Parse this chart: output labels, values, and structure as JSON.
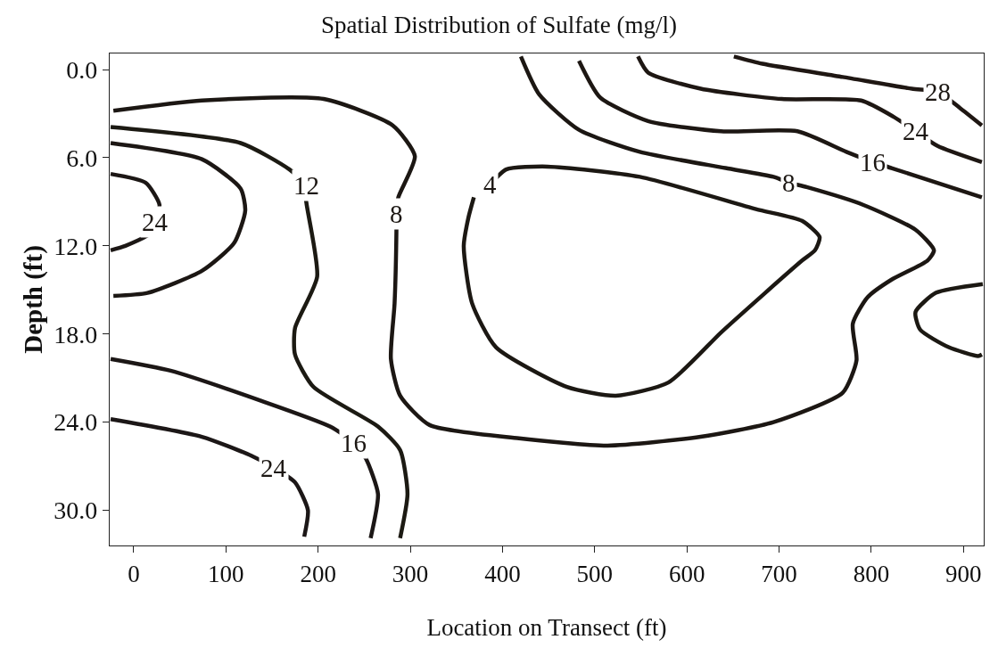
{
  "chart_data": {
    "type": "line",
    "title": "Spatial Distribution of Sulfate (mg/l)",
    "xlabel": "Location on Transect (ft)",
    "ylabel": "Depth (ft)",
    "xlim": [
      -26,
      922
    ],
    "ylim": [
      32.4,
      -1.1
    ],
    "xticks": [
      0,
      100,
      200,
      300,
      400,
      500,
      600,
      700,
      800,
      900
    ],
    "yticks": [
      {
        "value": 0,
        "label": "0.0"
      },
      {
        "value": 6,
        "label": "6.0"
      },
      {
        "value": 12,
        "label": "12.0"
      },
      {
        "value": 18,
        "label": "18.0"
      },
      {
        "value": 24,
        "label": "24.0"
      },
      {
        "value": 30,
        "label": "30.0"
      }
    ],
    "marker": "none",
    "line_style": "solid",
    "series": [
      {
        "color": "#1c1713",
        "x": [
          420,
          440,
          483,
          549,
          642,
          694,
          711,
          730,
          791,
          848,
          868,
          861,
          822,
          796,
          780,
          784,
          769,
          694,
          615,
          514,
          418,
          321,
          289,
          279,
          283,
          285,
          285,
          287,
          305,
          281,
          206,
          74,
          -22
        ],
        "values": [
          -0.9,
          1.7,
          4.1,
          5.6,
          6.7,
          7.3,
          7.7,
          8.0,
          9.2,
          10.9,
          12.3,
          13.0,
          14.3,
          15.5,
          17.3,
          19.8,
          22.0,
          24.0,
          25.0,
          25.6,
          25.1,
          24.2,
          22.2,
          19.7,
          15.9,
          10.9,
          9.8,
          8.7,
          5.9,
          3.8,
          2.0,
          2.1,
          2.8
        ]
      },
      {
        "color": "#1d1713",
        "x": [
          483,
          506,
          558,
          637,
          720,
          773,
          802,
          822,
          920
        ],
        "values": [
          -0.6,
          1.9,
          3.5,
          4.2,
          4.2,
          5.6,
          6.3,
          6.7,
          8.7
        ]
      },
      {
        "color": "#1e1713",
        "x": [
          547,
          558,
          615,
          703,
          789,
          824,
          848,
          872,
          920
        ],
        "values": [
          -0.9,
          0.2,
          1.3,
          2.0,
          2.1,
          3.2,
          4.2,
          5.2,
          6.3
        ]
      },
      {
        "color": "#1f1713",
        "x": [
          651,
          682,
          769,
          844,
          872,
          896,
          920
        ],
        "values": [
          -0.9,
          -0.4,
          0.5,
          1.3,
          1.5,
          2.6,
          3.8
        ]
      },
      {
        "color": "#1c1813",
        "x": [
          387,
          404,
          449,
          549,
          675,
          725,
          744,
          739,
          725,
          685,
          637,
          580,
          523,
          470,
          393,
          367,
          358,
          363,
          369
        ],
        "values": [
          7.8,
          6.8,
          6.6,
          7.3,
          9.5,
          10.3,
          11.4,
          12.3,
          13.0,
          15.2,
          17.9,
          21.3,
          22.2,
          21.6,
          18.9,
          15.9,
          12.0,
          10.1,
          8.7
        ]
      },
      {
        "color": "#1c1913",
        "x": [
          921,
          870,
          848,
          853,
          884,
          916,
          920
        ],
        "values": [
          14.6,
          15.2,
          16.5,
          17.7,
          18.9,
          19.5,
          19.4
        ]
      },
      {
        "color": "#1c1a13",
        "x": [
          -25,
          116,
          169,
          187,
          187,
          199,
          175,
          175,
          195,
          265,
          289,
          297,
          289
        ],
        "values": [
          3.9,
          5.0,
          6.8,
          7.9,
          8.9,
          14.1,
          17.6,
          19.4,
          21.6,
          24.3,
          25.9,
          28.9,
          31.9
        ]
      },
      {
        "color": "#1c1714",
        "x": [
          -25,
          74,
          116,
          121,
          109,
          74,
          15,
          -22
        ],
        "values": [
          5.0,
          6.1,
          8.1,
          9.6,
          11.8,
          13.7,
          15.2,
          15.4
        ]
      },
      {
        "color": "#1c1715",
        "x": [
          -25,
          13,
          28,
          23,
          17,
          -9,
          -25
        ],
        "values": [
          7.1,
          7.7,
          9.2,
          10.4,
          11.2,
          12.0,
          12.3
        ]
      },
      {
        "color": "#1c1716",
        "x": [
          -25,
          40,
          136,
          213,
          239,
          252,
          265,
          257
        ],
        "values": [
          19.7,
          20.5,
          22.5,
          24.3,
          25.4,
          26.5,
          28.9,
          31.9
        ]
      },
      {
        "color": "#1c1717",
        "x": [
          -25,
          74,
          128,
          152,
          175,
          189,
          185
        ],
        "values": [
          23.8,
          25.0,
          26.3,
          27.1,
          28.1,
          30.0,
          31.8
        ]
      }
    ],
    "annotations": [
      {
        "text": "28",
        "x": 872,
        "y": 1.5
      },
      {
        "text": "24",
        "x": 848,
        "y": 4.2
      },
      {
        "text": "16",
        "x": 802,
        "y": 6.3
      },
      {
        "text": "8",
        "x": 711,
        "y": 7.7
      },
      {
        "text": "4",
        "x": 387,
        "y": 7.8
      },
      {
        "text": "8",
        "x": 285,
        "y": 9.8
      },
      {
        "text": "12",
        "x": 187,
        "y": 7.9
      },
      {
        "text": "24",
        "x": 23,
        "y": 10.4
      },
      {
        "text": "16",
        "x": 239,
        "y": 25.4
      },
      {
        "text": "24",
        "x": 152,
        "y": 27.1
      }
    ]
  }
}
